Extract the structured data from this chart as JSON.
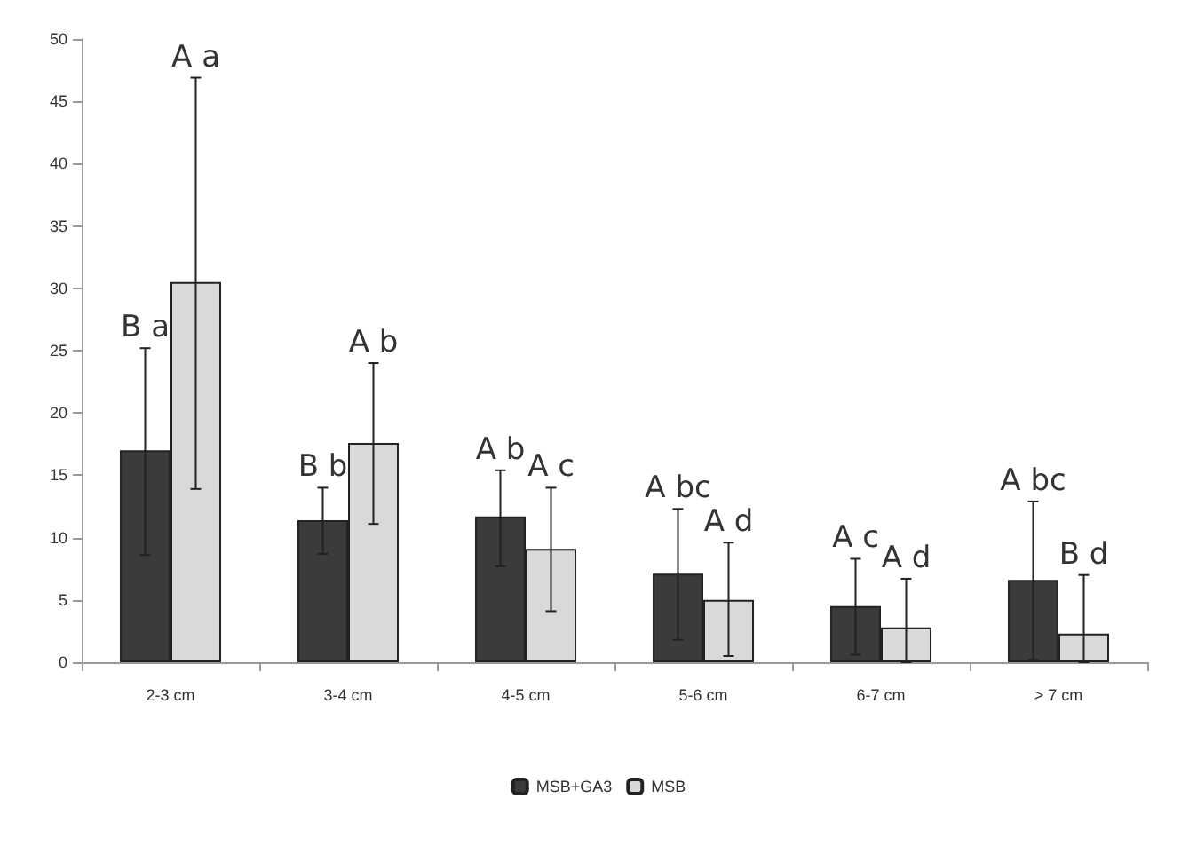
{
  "chart_data": {
    "type": "bar",
    "categories": [
      "2-3 cm",
      "3-4 cm",
      "4-5 cm",
      "5-6 cm",
      "6-7 cm",
      "> 7 cm"
    ],
    "series": [
      {
        "name": "MSB+GA3",
        "color": "#3b3b3b",
        "values": [
          17.0,
          11.4,
          11.7,
          7.1,
          4.5,
          6.6
        ],
        "errors": [
          [
            8.6,
            25.2
          ],
          [
            8.7,
            14.0
          ],
          [
            7.7,
            15.4
          ],
          [
            1.8,
            12.3
          ],
          [
            0.6,
            8.3
          ],
          [
            0.2,
            12.9
          ]
        ]
      },
      {
        "name": "MSB",
        "color": "#d9d9d9",
        "values": [
          30.5,
          17.6,
          9.1,
          5.0,
          2.8,
          2.3
        ],
        "errors": [
          [
            13.9,
            46.9
          ],
          [
            11.1,
            24.0
          ],
          [
            4.1,
            14.0
          ],
          [
            0.5,
            9.6
          ],
          [
            0.0,
            6.7
          ],
          [
            0.0,
            7.0
          ]
        ]
      }
    ],
    "annotations": [
      "B a",
      "A a",
      "B b",
      "A b",
      "A b",
      "A c",
      "A bc",
      "A d",
      "A c",
      "A d",
      "A bc",
      "B d"
    ],
    "ylim": [
      0,
      50
    ],
    "yticks": [
      0,
      5,
      10,
      15,
      20,
      25,
      30,
      35,
      40,
      45,
      50
    ],
    "grid": false,
    "legend": "bottom"
  }
}
